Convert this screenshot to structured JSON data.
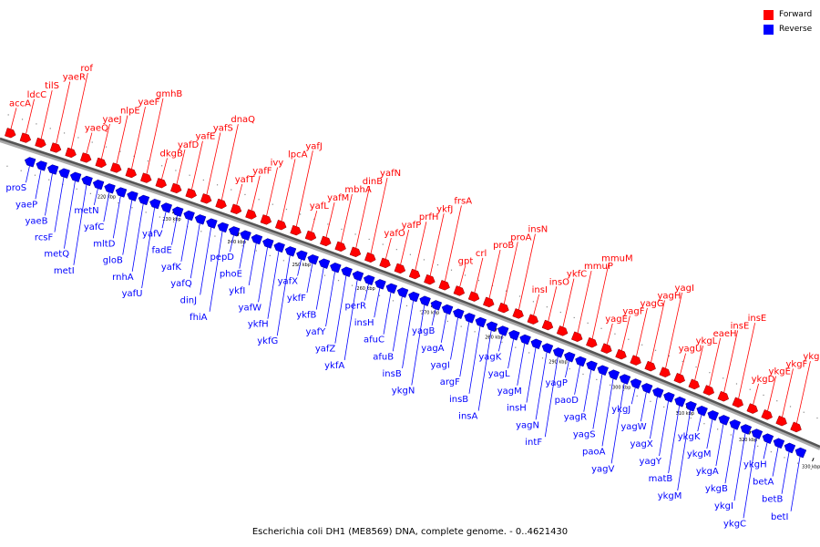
{
  "legend": {
    "forward_label": "Forward",
    "reverse_label": "Reverse",
    "forward_color": "#ff0000",
    "reverse_color": "#0000ff"
  },
  "caption": "Escherichia coli DH1 (ME8569) DNA, complete genome. - 0..4621430",
  "ticks": [
    "220 kbp",
    "230 kbp",
    "240 kbp",
    "250 kbp",
    "260 kbp",
    "270 kbp",
    "280 kbp",
    "290 kbp",
    "300 kbp",
    "310 kbp",
    "320 kbp",
    "330 kbp"
  ],
  "forward_genes": [
    "accA",
    "ldcC",
    "tilS",
    "yaeR",
    "rof",
    "yaeQ",
    "yaeJ",
    "nlpE",
    "yaeF",
    "gmhB",
    "dkgB",
    "yafD",
    "yafE",
    "yafS",
    "dnaQ",
    "yafT",
    "yafF",
    "ivy",
    "lpcA",
    "yafJ",
    "yafL",
    "yafM",
    "mbhA",
    "dinB",
    "yafN",
    "yafO",
    "yafP",
    "prfH",
    "ykfJ",
    "frsA",
    "gpt",
    "crl",
    "proB",
    "proA",
    "insN",
    "insI",
    "insO",
    "ykfC",
    "mmuP",
    "mmuM",
    "yagE",
    "yagF",
    "yagG",
    "yagH",
    "yagI",
    "yagU",
    "ykgL",
    "eaeH",
    "insE",
    "insE",
    "ykgD",
    "ykgE",
    "ykgF",
    "ykgG"
  ],
  "reverse_genes": [
    "proS",
    "yaeP",
    "yaeB",
    "rcsF",
    "metQ",
    "metI",
    "metN",
    "yafC",
    "mltD",
    "gloB",
    "rnhA",
    "yafU",
    "yafV",
    "fadE",
    "yafK",
    "yafQ",
    "dinJ",
    "fhiA",
    "pepD",
    "phoE",
    "ykfI",
    "yafW",
    "ykfH",
    "ykfG",
    "yafX",
    "ykfF",
    "ykfB",
    "yafY",
    "yafZ",
    "ykfA",
    "perR",
    "insH",
    "afuC",
    "afuB",
    "insB",
    "ykgN",
    "yagB",
    "yagA",
    "yagI",
    "argF",
    "insB",
    "insA",
    "yagK",
    "yagL",
    "yagM",
    "insH",
    "yagN",
    "intF",
    "yagP",
    "paoD",
    "yagR",
    "yagS",
    "paoA",
    "yagV",
    "ykgJ",
    "yagW",
    "yagX",
    "yagY",
    "matB",
    "ykgM",
    "ykgK",
    "ykgM",
    "ykgA",
    "ykgB",
    "ykgI",
    "ykgC",
    "ykgH",
    "betA",
    "betB",
    "betI"
  ]
}
